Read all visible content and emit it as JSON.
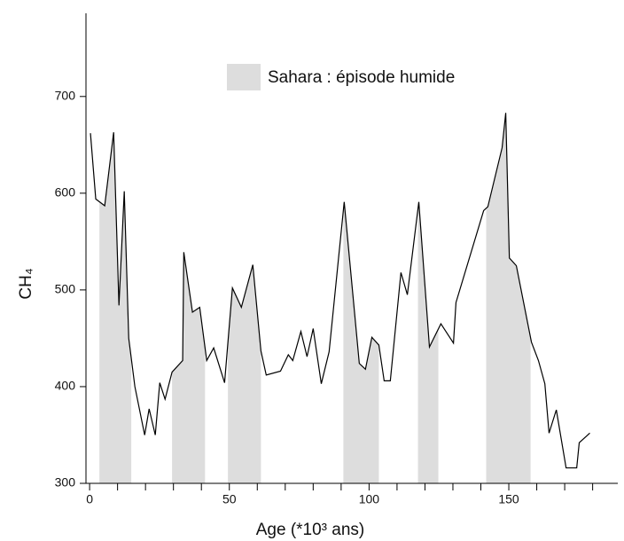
{
  "chart_data": {
    "type": "line",
    "xlabel": "Age (*10³ ans)",
    "ylabel": "CH₄",
    "x": [
      0.3,
      2.2,
      5.4,
      8.6,
      10.5,
      12.4,
      14,
      16.2,
      19.7,
      21.3,
      23.5,
      25.1,
      27,
      29.5,
      33.3,
      33.7,
      36.8,
      39.4,
      41.9,
      44.4,
      48.3,
      51.1,
      54.3,
      58.4,
      61.3,
      63.2,
      68.3,
      71.1,
      72.7,
      75.6,
      77.8,
      80,
      82.9,
      85.7,
      91.1,
      96.5,
      98.7,
      101,
      103.5,
      105.4,
      107.6,
      111.4,
      113.7,
      117.8,
      121.6,
      125.7,
      130.2,
      131.1,
      141,
      142.5,
      147.6,
      148.9,
      150.2,
      152.7,
      158.1,
      160.6,
      162.9,
      164.4,
      167,
      170.5,
      174.3,
      175.2,
      179
    ],
    "series": [
      {
        "color": "#000000",
        "values": [
          662,
          594,
          587,
          663,
          484,
          602,
          450,
          400,
          350,
          377,
          350,
          404,
          387,
          415,
          427,
          539,
          477,
          482,
          427,
          440,
          404,
          502,
          482,
          526,
          437,
          412,
          416,
          433,
          427,
          457,
          431,
          460,
          403,
          436,
          591,
          424,
          418,
          451,
          443,
          406,
          406,
          518,
          495,
          591,
          441,
          465,
          445,
          487,
          582,
          586,
          647,
          683,
          533,
          525,
          446,
          427,
          403,
          352,
          376,
          316,
          316,
          342,
          352
        ]
      }
    ],
    "bands": {
      "name": "Sahara : épisode humide",
      "color": "#dddddd",
      "ranges": [
        [
          3.5,
          14.9
        ],
        [
          29.5,
          41.3
        ],
        [
          49.5,
          61.3
        ],
        [
          90.8,
          103.5
        ],
        [
          117.5,
          124.8
        ],
        [
          141.9,
          157.8
        ]
      ]
    },
    "xlim": [
      -1.3,
      189
    ],
    "xticks": [
      0,
      50,
      100,
      150
    ],
    "xminorticks": [
      10,
      20,
      30,
      40,
      60,
      70,
      80,
      90,
      110,
      120,
      130,
      140,
      160,
      170,
      180
    ],
    "ylim": [
      300,
      786
    ],
    "yticks": [
      300,
      400,
      500,
      600,
      700
    ]
  }
}
